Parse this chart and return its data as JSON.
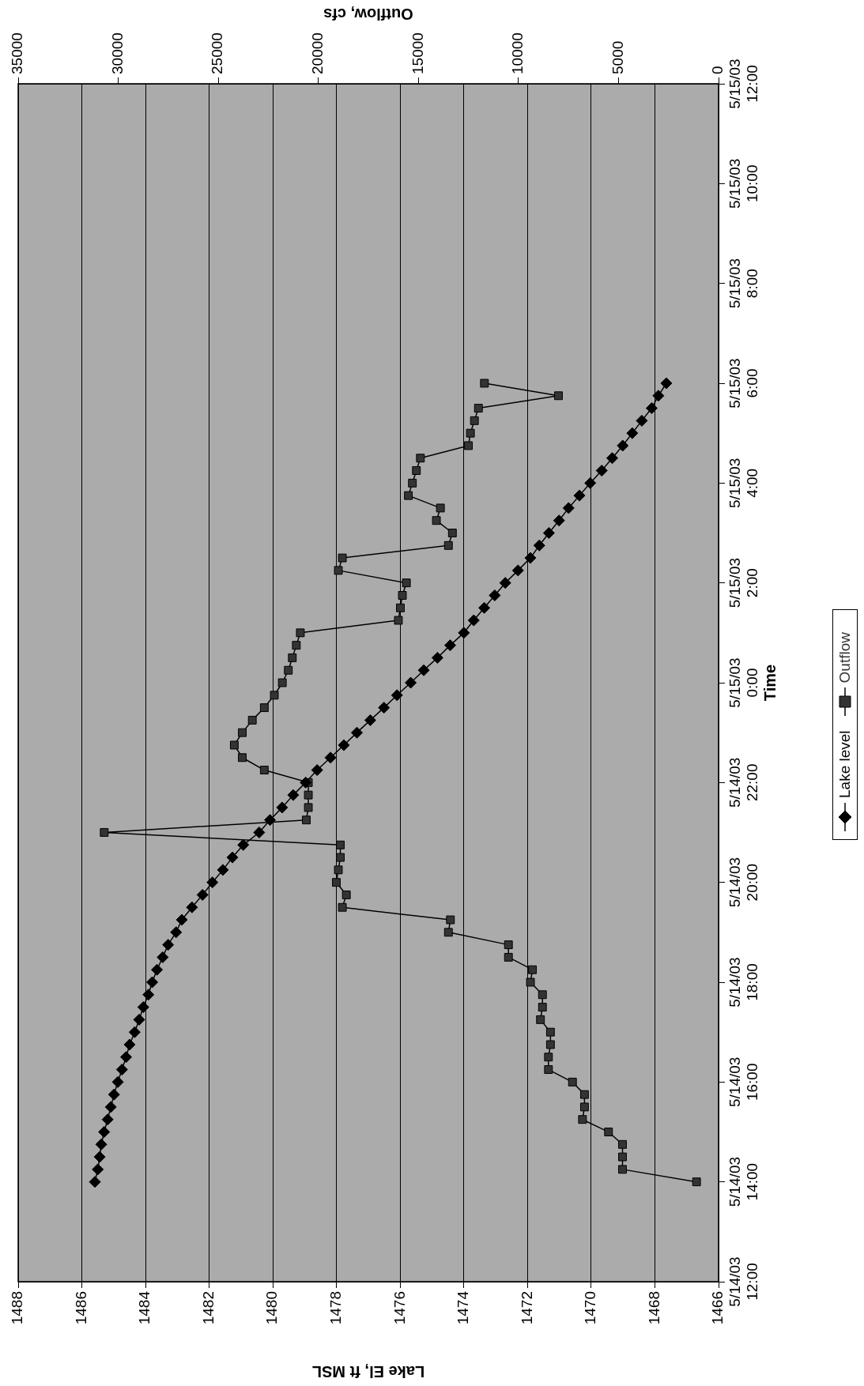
{
  "chart_data": {
    "type": "line",
    "orientation": "horizontal",
    "xlabel": "Lake El, ft MSL",
    "x2label": "Outflow, cfs",
    "ylabel": "Time",
    "x": [
      "--05-14T14:00",
      "--05-14T14:15",
      "--05-14T14:30",
      "--05-14T14:45",
      "--05-14T15:00",
      "--05-14T15:15",
      "--05-14T15:30",
      "--05-14T15:45",
      "--05-14T16:00",
      "--05-14T16:15",
      "--05-14T16:30",
      "--05-14T16:45",
      "--05-14T17:00",
      "--05-14T17:15",
      "--05-14T17:30",
      "--05-14T17:45",
      "--05-14T18:00",
      "--05-14T18:15",
      "--05-14T18:30",
      "--05-14T18:45",
      "--05-14T19:00",
      "--05-14T19:15",
      "--05-14T19:30",
      "--05-14T19:45",
      "--05-14T20:00",
      "--05-14T20:15",
      "--05-14T20:30",
      "--05-14T20:45",
      "--05-14T21:00",
      "--05-14T21:15",
      "--05-14T21:30",
      "--05-14T21:45",
      "--05-14T22:00",
      "--05-14T22:15",
      "--05-14T22:30",
      "--05-14T22:45",
      "--05-14T23:00",
      "--05-14T23:15",
      "--05-14T23:30",
      "--05-14T23:45",
      "--05-15T00:00",
      "--05-15T00:15",
      "--05-15T00:30",
      "--05-15T00:45",
      "--05-15T01:00",
      "--05-15T01:15",
      "--05-15T01:30",
      "--05-15T01:45",
      "--05-15T02:00",
      "--05-15T02:15",
      "--05-15T02:30",
      "--05-15T02:45",
      "--05-15T03:00",
      "--05-15T03:15",
      "--05-15T03:30",
      "--05-15T03:45",
      "--05-15T04:00",
      "--05-15T04:15",
      "--05-15T04:30",
      "--05-15T04:45",
      "--05-15T05:00",
      "--05-15T05:15",
      "--05-15T05:30",
      "--05-15T05:45",
      "--05-15T06:00"
    ],
    "series": [
      {
        "name": "Lake level",
        "color": "#000000",
        "marker": "diamond",
        "values": [
          1485.59,
          1485.5,
          1485.44,
          1485.39,
          1485.3,
          1485.19,
          1485.09,
          1484.99,
          1484.87,
          1484.74,
          1484.61,
          1484.5,
          1484.34,
          1484.2,
          1484.07,
          1483.91,
          1483.79,
          1483.64,
          1483.46,
          1483.29,
          1483.04,
          1482.86,
          1482.54,
          1482.21,
          1481.9,
          1481.57,
          1481.27,
          1480.93,
          1480.43,
          1480.09,
          1479.71,
          1479.36,
          1478.97,
          1478.61,
          1478.19,
          1477.77,
          1477.36,
          1476.94,
          1476.51,
          1476.1,
          1475.67,
          1475.26,
          1474.83,
          1474.43,
          1474.0,
          1473.69,
          1473.36,
          1473.03,
          1472.7,
          1472.3,
          1471.91,
          1471.63,
          1471.33,
          1471.01,
          1470.71,
          1470.37,
          1470.03,
          1469.67,
          1469.34,
          1469.01,
          1468.71,
          1468.41,
          1468.1,
          1467.89,
          1467.64
        ]
      },
      {
        "name": "Outflow",
        "color": "#333333",
        "marker": "square",
        "axis": "x2",
        "values": [
          1100,
          4800,
          4800,
          4800,
          5500,
          6800,
          6700,
          6700,
          7300,
          8500,
          8500,
          8400,
          8400,
          8900,
          8800,
          8800,
          9400,
          9300,
          10500,
          10500,
          13500,
          13400,
          18800,
          18600,
          19100,
          19000,
          18900,
          18900,
          30700,
          20600,
          20500,
          20500,
          20500,
          22700,
          23800,
          24200,
          23800,
          23300,
          22700,
          22200,
          21800,
          21500,
          21300,
          21100,
          20900,
          16000,
          15900,
          15800,
          15600,
          19000,
          18800,
          13500,
          13300,
          14100,
          13900,
          15500,
          15300,
          15100,
          14900,
          12500,
          12400,
          12200,
          12000,
          8000,
          11700
        ]
      }
    ],
    "ylim": [
      "--05-14T12:00",
      "--05-15T12:00"
    ],
    "yticks": [
      {
        "value": "--05-14T12:00",
        "label": "5/14/03 12:00"
      },
      {
        "value": "--05-14T14:00",
        "label": "5/14/03 14:00"
      },
      {
        "value": "--05-14T16:00",
        "label": "5/14/03 16:00"
      },
      {
        "value": "--05-14T18:00",
        "label": "5/14/03 18:00"
      },
      {
        "value": "--05-14T20:00",
        "label": "5/14/03 20:00"
      },
      {
        "value": "--05-14T22:00",
        "label": "5/14/03 22:00"
      },
      {
        "value": "--05-15T00:00",
        "label": "5/15/03 0:00"
      },
      {
        "value": "--05-15T02:00",
        "label": "5/15/03 2:00"
      },
      {
        "value": "--05-15T04:00",
        "label": "5/15/03 4:00"
      },
      {
        "value": "--05-15T06:00",
        "label": "5/15/03 6:00"
      },
      {
        "value": "--05-15T08:00",
        "label": "5/15/03 8:00"
      },
      {
        "value": "--05-15T10:00",
        "label": "5/15/03 10:00"
      },
      {
        "value": "--05-15T12:00",
        "label": "5/15/03 12:00"
      }
    ],
    "xlim": [
      1488,
      1466
    ],
    "xticks": [
      1488,
      1486,
      1484,
      1482,
      1480,
      1478,
      1476,
      1474,
      1472,
      1470,
      1468,
      1466
    ],
    "x2lim": [
      35000,
      0
    ],
    "x2ticks": [
      35000,
      30000,
      25000,
      20000,
      15000,
      10000,
      5000,
      0
    ],
    "grid": "x",
    "legend": "right",
    "line_style": "solid"
  }
}
